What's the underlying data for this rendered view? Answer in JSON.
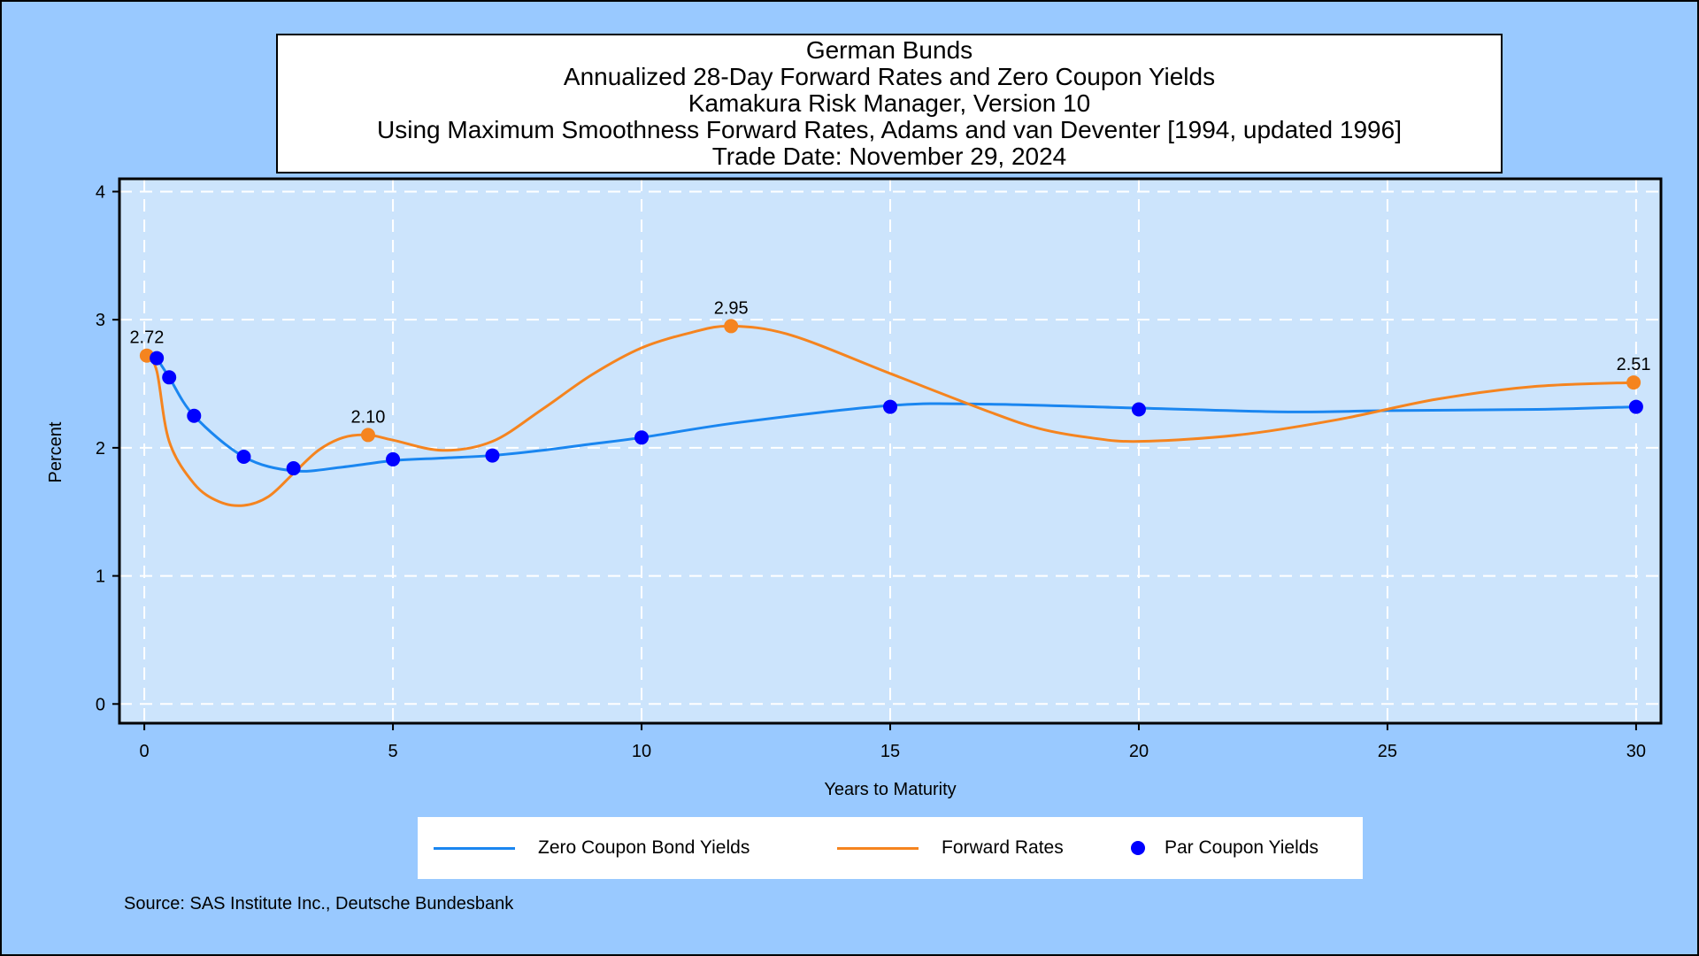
{
  "title_lines": [
    "German Bunds",
    "Annualized 28-Day Forward Rates and Zero Coupon Yields",
    "Kamakura Risk Manager, Version 10",
    "Using Maximum Smoothness Forward Rates, Adams and van Deventer [1994, updated 1996]",
    "Trade Date: November 29, 2024"
  ],
  "source": "Source: SAS Institute Inc., Deutsche Bundesbank",
  "legend": [
    {
      "label": "Zero Coupon Bond Yields",
      "kind": "line",
      "color": "#1a86f0"
    },
    {
      "label": "Forward Rates",
      "kind": "line",
      "color": "#f5841f"
    },
    {
      "label": "Par Coupon Yields",
      "kind": "dot",
      "color": "#0000ff"
    }
  ],
  "chart_data": {
    "type": "line",
    "xlabel": "Years to Maturity",
    "ylabel": "Percent",
    "xlim": [
      -0.5,
      30.5
    ],
    "ylim": [
      -0.15,
      4.1
    ],
    "xticks": [
      0,
      5,
      10,
      15,
      20,
      25,
      30
    ],
    "yticks": [
      0,
      1,
      2,
      3,
      4
    ],
    "grid": true,
    "legend_position": "bottom",
    "colors": {
      "plot_bg": "#cce4fc",
      "outer_bg": "#99c9ff",
      "grid": "#ffffff"
    },
    "series": [
      {
        "name": "Zero Coupon Bond Yields",
        "color": "#1a86f0",
        "x": [
          0.25,
          0.5,
          1,
          2,
          3,
          4,
          5,
          6,
          7,
          8,
          9,
          10,
          12,
          15,
          17,
          20,
          23,
          25,
          28,
          30
        ],
        "y": [
          2.7,
          2.55,
          2.25,
          1.93,
          1.82,
          1.85,
          1.9,
          1.92,
          1.94,
          1.98,
          2.03,
          2.08,
          2.2,
          2.33,
          2.34,
          2.31,
          2.28,
          2.29,
          2.3,
          2.32
        ]
      },
      {
        "name": "Forward Rates",
        "color": "#f5841f",
        "x": [
          0.05,
          0.25,
          0.5,
          1,
          1.5,
          2,
          2.5,
          3,
          3.5,
          4,
          4.5,
          5,
          6,
          7,
          8,
          9,
          10,
          11,
          11.8,
          13,
          15,
          17,
          18,
          19,
          20,
          22,
          24,
          26,
          28,
          30
        ],
        "y": [
          2.72,
          2.6,
          2.05,
          1.72,
          1.58,
          1.55,
          1.62,
          1.8,
          1.98,
          2.08,
          2.1,
          2.06,
          1.98,
          2.05,
          2.3,
          2.57,
          2.78,
          2.9,
          2.95,
          2.88,
          2.58,
          2.28,
          2.15,
          2.08,
          2.05,
          2.1,
          2.22,
          2.38,
          2.48,
          2.51
        ]
      },
      {
        "name": "Par Coupon Yields",
        "color": "#0000ff",
        "kind": "scatter",
        "x": [
          0.25,
          0.5,
          1,
          2,
          3,
          5,
          7,
          10,
          15,
          20,
          30
        ],
        "y": [
          2.7,
          2.55,
          2.25,
          1.93,
          1.84,
          1.91,
          1.94,
          2.08,
          2.32,
          2.3,
          2.32
        ]
      }
    ],
    "forward_markers": [
      {
        "x": 0.05,
        "y": 2.72,
        "label": "2.72"
      },
      {
        "x": 4.5,
        "y": 2.1,
        "label": "2.10"
      },
      {
        "x": 11.8,
        "y": 2.95,
        "label": "2.95"
      },
      {
        "x": 29.95,
        "y": 2.51,
        "label": "2.51"
      }
    ]
  }
}
